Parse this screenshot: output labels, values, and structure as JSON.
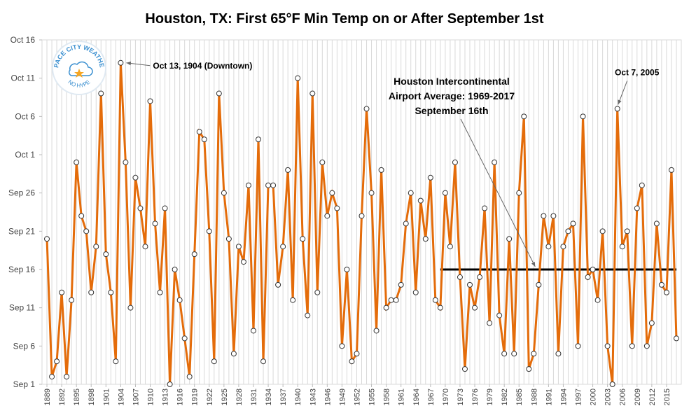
{
  "chart_data": {
    "type": "line",
    "title": "Houston, TX: First 65°F Min Temp on or After September 1st",
    "x": [
      1889,
      1890,
      1891,
      1892,
      1893,
      1894,
      1895,
      1896,
      1897,
      1898,
      1899,
      1900,
      1901,
      1902,
      1903,
      1904,
      1905,
      1906,
      1907,
      1908,
      1909,
      1910,
      1911,
      1912,
      1913,
      1914,
      1915,
      1916,
      1917,
      1918,
      1919,
      1920,
      1921,
      1922,
      1923,
      1924,
      1925,
      1926,
      1927,
      1928,
      1929,
      1930,
      1931,
      1932,
      1933,
      1934,
      1935,
      1936,
      1937,
      1938,
      1939,
      1940,
      1941,
      1942,
      1943,
      1944,
      1945,
      1946,
      1947,
      1948,
      1949,
      1950,
      1951,
      1952,
      1953,
      1954,
      1955,
      1956,
      1957,
      1958,
      1959,
      1960,
      1961,
      1962,
      1963,
      1964,
      1965,
      1966,
      1967,
      1968,
      1969,
      1970,
      1971,
      1972,
      1973,
      1974,
      1975,
      1976,
      1977,
      1978,
      1979,
      1980,
      1981,
      1982,
      1983,
      1984,
      1985,
      1986,
      1987,
      1988,
      1989,
      1990,
      1991,
      1992,
      1993,
      1994,
      1995,
      1996,
      1997,
      1998,
      1999,
      2000,
      2001,
      2002,
      2003,
      2004,
      2005,
      2006,
      2007,
      2008,
      2009,
      2010,
      2011,
      2012,
      2013,
      2014,
      2015,
      2016,
      2017
    ],
    "series": [
      {
        "name": "First 65°F Min Temp",
        "color": "#e46c0a",
        "values": [
          20,
          2,
          4,
          13,
          2,
          12,
          30,
          23,
          21,
          13,
          19,
          39,
          18,
          13,
          4,
          43,
          30,
          11,
          28,
          24,
          19,
          38,
          22,
          13,
          24,
          1,
          16,
          12,
          7,
          2,
          18,
          34,
          33,
          21,
          4,
          39,
          26,
          20,
          5,
          19,
          17,
          27,
          8,
          33,
          4,
          27,
          27,
          14,
          19,
          29,
          12,
          41,
          20,
          10,
          39,
          13,
          30,
          23,
          26,
          24,
          6,
          16,
          4,
          5,
          23,
          37,
          26,
          8,
          29,
          11,
          12,
          12,
          14,
          22,
          26,
          13,
          25,
          20,
          28,
          12,
          11,
          26,
          19,
          30,
          15,
          3,
          14,
          11,
          15,
          24,
          9,
          30,
          10,
          5,
          20,
          5,
          26,
          36,
          3,
          5,
          14,
          23,
          19,
          23,
          5,
          19,
          21,
          22,
          6,
          36,
          15,
          16,
          12,
          21,
          6,
          1,
          37,
          19,
          21,
          6,
          24,
          27,
          6,
          9,
          22,
          14,
          13,
          29,
          7
        ]
      }
    ],
    "xlim": [
      1888,
      2018
    ],
    "xticks": [
      1889,
      1892,
      1895,
      1898,
      1901,
      1904,
      1907,
      1910,
      1913,
      1916,
      1919,
      1922,
      1925,
      1928,
      1931,
      1934,
      1937,
      1940,
      1943,
      1946,
      1949,
      1952,
      1955,
      1958,
      1961,
      1964,
      1967,
      1970,
      1973,
      1976,
      1979,
      1982,
      1985,
      1988,
      1991,
      1994,
      1997,
      2000,
      2003,
      2006,
      2009,
      2012,
      2015
    ],
    "ylim": [
      1,
      46
    ],
    "yticks": [
      {
        "value": 1,
        "label": "Sep 1"
      },
      {
        "value": 6,
        "label": "Sep 6"
      },
      {
        "value": 11,
        "label": "Sep 11"
      },
      {
        "value": 16,
        "label": "Sep 16"
      },
      {
        "value": 21,
        "label": "Sep 21"
      },
      {
        "value": 26,
        "label": "Sep 26"
      },
      {
        "value": 31,
        "label": "Oct 1"
      },
      {
        "value": 36,
        "label": "Oct 6"
      },
      {
        "value": 41,
        "label": "Oct 11"
      },
      {
        "value": 46,
        "label": "Oct 16"
      }
    ],
    "grid": true,
    "average": {
      "value": 16,
      "start": 1969,
      "end": 2017,
      "color": "#000000",
      "label": [
        "Houston Intercontinental",
        "Airport Average: 1969-2017",
        "September 16th"
      ]
    },
    "annotations": [
      {
        "text": "Oct 13, 1904 (Downtown)",
        "x": 1904,
        "y": 43
      },
      {
        "text": "Oct 7, 2005",
        "x": 2005,
        "y": 37
      }
    ],
    "logo": {
      "top": "SPACE CITY WEATHER",
      "bottom": "NO HYPE"
    }
  }
}
